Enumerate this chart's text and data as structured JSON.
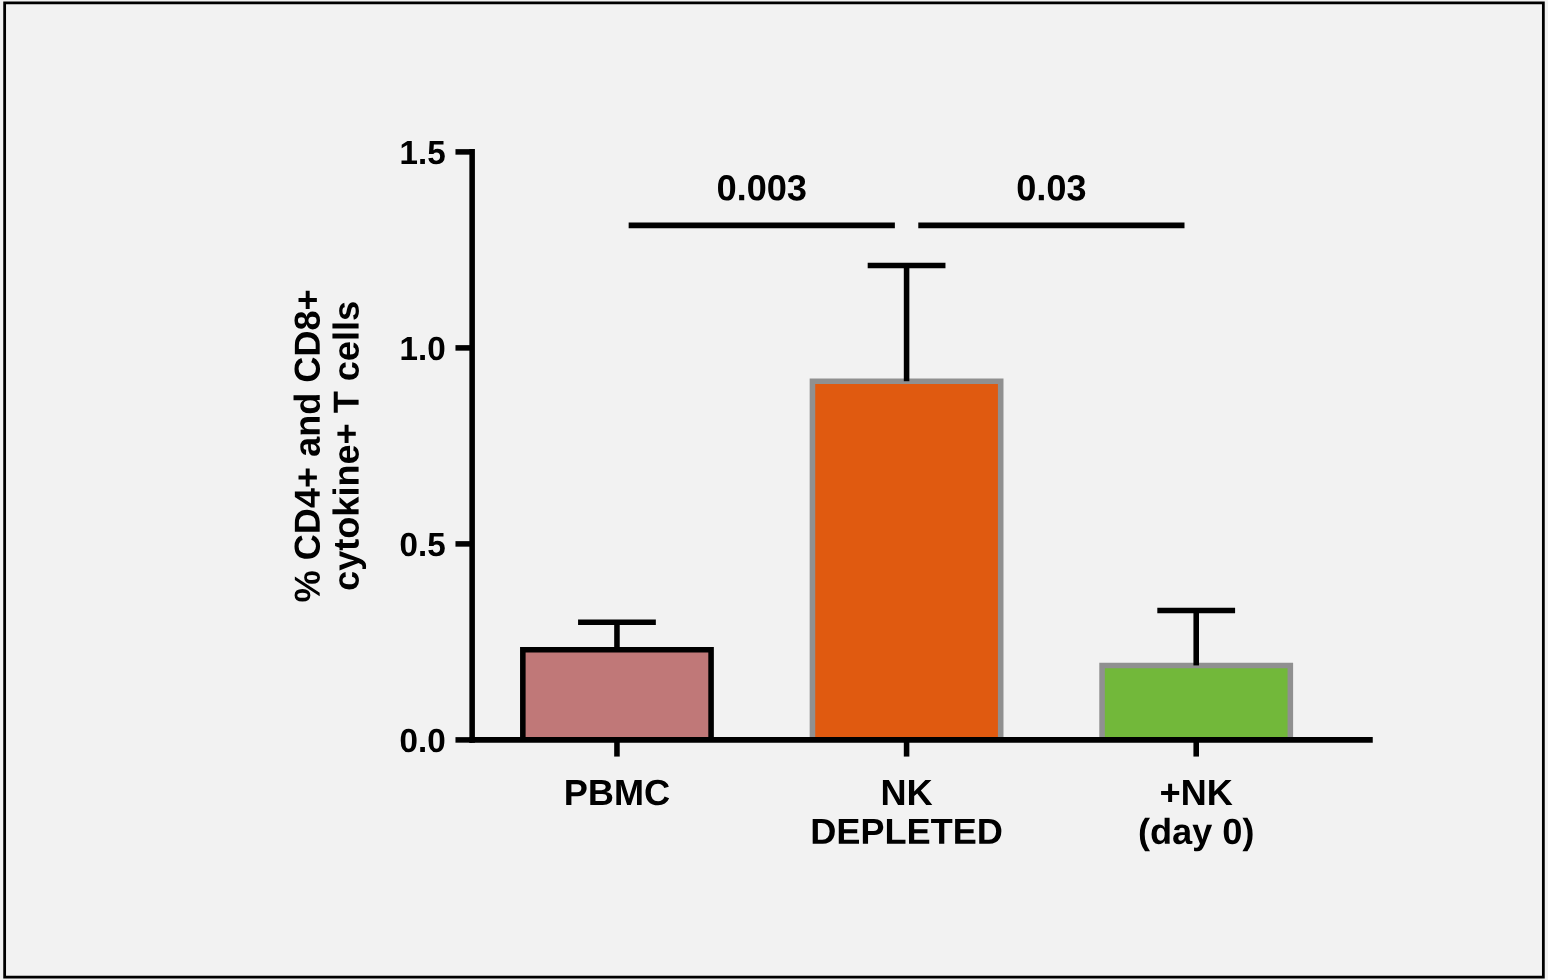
{
  "chart_data": {
    "type": "bar",
    "ylabel": "% CD4+ and CD8+\ncytokine+ T cells",
    "categories": [
      "PBMC",
      "NK\nDEPLETED",
      "+NK\n(day 0)"
    ],
    "values": [
      0.23,
      0.915,
      0.19
    ],
    "errors": [
      [
        0.23,
        0.3
      ],
      [
        0.915,
        1.21
      ],
      [
        0.19,
        0.33
      ]
    ],
    "colors": [
      "#c07878",
      "#e05a10",
      "#72b83a"
    ],
    "ylim": [
      0,
      1.5
    ],
    "yticks": [
      {
        "value": 0,
        "label": "0.0"
      },
      {
        "value": 0.5,
        "label": "0.5"
      },
      {
        "value": 1,
        "label": "1.0"
      },
      {
        "value": 1.5,
        "label": "1.5"
      }
    ],
    "grid": false,
    "annotations": [
      "0.003",
      "0.03"
    ]
  }
}
